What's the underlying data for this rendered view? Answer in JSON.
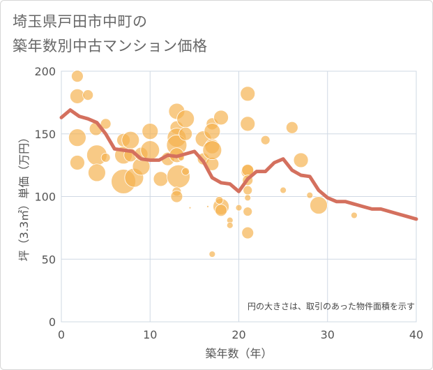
{
  "title_lines": [
    "埼玉県戸田市中町の",
    "築年数別中古マンション価格"
  ],
  "chart_data": {
    "type": "scatter",
    "xlabel": "築年数（年）",
    "ylabel": "坪（3.3㎡）単価（万円）",
    "xlim": [
      0,
      40
    ],
    "ylim": [
      0,
      200
    ],
    "xticks": [
      0,
      10,
      20,
      30,
      40
    ],
    "yticks": [
      0,
      50,
      100,
      150,
      200
    ],
    "grid": true,
    "note": "円の大きさは、取引のあった物件面積を示す",
    "colors": {
      "bubble": "#f5b14c",
      "line": "#d4705e",
      "grid": "#cfd8e3"
    },
    "bubbles": [
      {
        "x": 1.8,
        "y": 196,
        "s": 8
      },
      {
        "x": 1.8,
        "y": 180,
        "s": 10
      },
      {
        "x": 3,
        "y": 181,
        "s": 7
      },
      {
        "x": 1.8,
        "y": 147,
        "s": 12
      },
      {
        "x": 1.8,
        "y": 127,
        "s": 10
      },
      {
        "x": 3.9,
        "y": 154,
        "s": 9
      },
      {
        "x": 5,
        "y": 158,
        "s": 7
      },
      {
        "x": 4,
        "y": 133,
        "s": 14
      },
      {
        "x": 4,
        "y": 119,
        "s": 12
      },
      {
        "x": 5,
        "y": 131,
        "s": 6
      },
      {
        "x": 7,
        "y": 145,
        "s": 9
      },
      {
        "x": 7,
        "y": 133,
        "s": 12
      },
      {
        "x": 7.8,
        "y": 145,
        "s": 12
      },
      {
        "x": 7.8,
        "y": 133,
        "s": 9
      },
      {
        "x": 7,
        "y": 112,
        "s": 17
      },
      {
        "x": 8.2,
        "y": 115,
        "s": 13
      },
      {
        "x": 9,
        "y": 124,
        "s": 12
      },
      {
        "x": 9,
        "y": 134,
        "s": 9
      },
      {
        "x": 10,
        "y": 152,
        "s": 11
      },
      {
        "x": 10,
        "y": 137,
        "s": 13
      },
      {
        "x": 11.2,
        "y": 114,
        "s": 10
      },
      {
        "x": 12,
        "y": 130,
        "s": 9
      },
      {
        "x": 13,
        "y": 168,
        "s": 11
      },
      {
        "x": 13,
        "y": 155,
        "s": 9
      },
      {
        "x": 13,
        "y": 147,
        "s": 13
      },
      {
        "x": 13,
        "y": 141,
        "s": 14
      },
      {
        "x": 13,
        "y": 133,
        "s": 10
      },
      {
        "x": 13.2,
        "y": 116,
        "s": 16
      },
      {
        "x": 13,
        "y": 104,
        "s": 6
      },
      {
        "x": 13,
        "y": 100,
        "s": 8
      },
      {
        "x": 14,
        "y": 162,
        "s": 12
      },
      {
        "x": 14,
        "y": 150,
        "s": 9
      },
      {
        "x": 13.5,
        "y": 131,
        "s": 4
      },
      {
        "x": 14,
        "y": 120,
        "s": 5
      },
      {
        "x": 14.5,
        "y": 91,
        "s": 1
      },
      {
        "x": 16,
        "y": 146,
        "s": 11
      },
      {
        "x": 16,
        "y": 130,
        "s": 8
      },
      {
        "x": 16.5,
        "y": 92,
        "s": 1
      },
      {
        "x": 17,
        "y": 158,
        "s": 8
      },
      {
        "x": 17,
        "y": 152,
        "s": 11
      },
      {
        "x": 17,
        "y": 140,
        "s": 10
      },
      {
        "x": 17,
        "y": 126,
        "s": 9
      },
      {
        "x": 17,
        "y": 137,
        "s": 13
      },
      {
        "x": 18,
        "y": 163,
        "s": 10
      },
      {
        "x": 18,
        "y": 92,
        "s": 11
      },
      {
        "x": 18,
        "y": 89,
        "s": 8
      },
      {
        "x": 19,
        "y": 81,
        "s": 4
      },
      {
        "x": 19,
        "y": 77,
        "s": 4
      },
      {
        "x": 17.8,
        "y": 97,
        "s": 5
      },
      {
        "x": 17,
        "y": 54,
        "s": 4
      },
      {
        "x": 20,
        "y": 91,
        "s": 4
      },
      {
        "x": 21,
        "y": 182,
        "s": 10
      },
      {
        "x": 21,
        "y": 158,
        "s": 10
      },
      {
        "x": 21,
        "y": 120,
        "s": 9
      },
      {
        "x": 21,
        "y": 121,
        "s": 8
      },
      {
        "x": 21,
        "y": 113,
        "s": 7
      },
      {
        "x": 21,
        "y": 105,
        "s": 6
      },
      {
        "x": 21,
        "y": 99,
        "s": 4
      },
      {
        "x": 21,
        "y": 88,
        "s": 6
      },
      {
        "x": 21,
        "y": 71,
        "s": 8
      },
      {
        "x": 23,
        "y": 145,
        "s": 6
      },
      {
        "x": 25,
        "y": 105,
        "s": 4
      },
      {
        "x": 26,
        "y": 155,
        "s": 8
      },
      {
        "x": 27,
        "y": 129,
        "s": 10
      },
      {
        "x": 28,
        "y": 101,
        "s": 4
      },
      {
        "x": 29,
        "y": 93,
        "s": 12
      },
      {
        "x": 33,
        "y": 85,
        "s": 4
      }
    ],
    "trend": [
      {
        "x": 0,
        "y": 163
      },
      {
        "x": 1,
        "y": 169
      },
      {
        "x": 2,
        "y": 164
      },
      {
        "x": 3,
        "y": 162
      },
      {
        "x": 4,
        "y": 159
      },
      {
        "x": 5,
        "y": 150
      },
      {
        "x": 6,
        "y": 138
      },
      {
        "x": 7,
        "y": 137
      },
      {
        "x": 8,
        "y": 136
      },
      {
        "x": 9,
        "y": 130
      },
      {
        "x": 10,
        "y": 129
      },
      {
        "x": 11,
        "y": 129
      },
      {
        "x": 12,
        "y": 133
      },
      {
        "x": 13,
        "y": 132
      },
      {
        "x": 14,
        "y": 134
      },
      {
        "x": 15,
        "y": 136
      },
      {
        "x": 16,
        "y": 128
      },
      {
        "x": 17,
        "y": 115
      },
      {
        "x": 18,
        "y": 111
      },
      {
        "x": 19,
        "y": 110
      },
      {
        "x": 20,
        "y": 104
      },
      {
        "x": 21,
        "y": 114
      },
      {
        "x": 22,
        "y": 120
      },
      {
        "x": 23,
        "y": 120
      },
      {
        "x": 24,
        "y": 127
      },
      {
        "x": 25,
        "y": 130
      },
      {
        "x": 26,
        "y": 121
      },
      {
        "x": 27,
        "y": 117
      },
      {
        "x": 28,
        "y": 116
      },
      {
        "x": 29,
        "y": 105
      },
      {
        "x": 30,
        "y": 99
      },
      {
        "x": 31,
        "y": 96
      },
      {
        "x": 32,
        "y": 96
      },
      {
        "x": 33,
        "y": 94
      },
      {
        "x": 34,
        "y": 92
      },
      {
        "x": 35,
        "y": 90
      },
      {
        "x": 36,
        "y": 90
      },
      {
        "x": 37,
        "y": 88
      },
      {
        "x": 38,
        "y": 86
      },
      {
        "x": 39,
        "y": 84
      },
      {
        "x": 40,
        "y": 82
      }
    ]
  }
}
